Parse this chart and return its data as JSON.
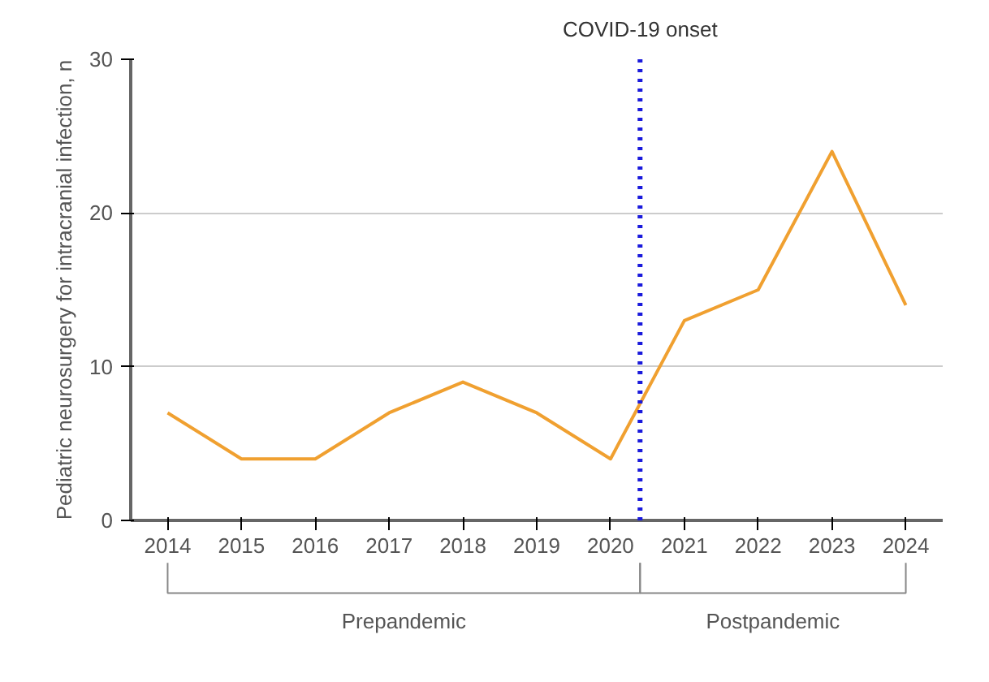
{
  "chart_data": {
    "type": "line",
    "ylabel": "Pediatric neurosurgery for intracranial infection, n",
    "x": [
      2014,
      2015,
      2016,
      2017,
      2018,
      2019,
      2020,
      2021,
      2022,
      2023,
      2024
    ],
    "series": [
      {
        "color": "#f0a030",
        "values": [
          7,
          4,
          4,
          7,
          9,
          7,
          4,
          13,
          15,
          24,
          14
        ]
      }
    ],
    "xlim": [
      2013.5,
      2024.5
    ],
    "xticks": [
      2014,
      2015,
      2016,
      2017,
      2018,
      2019,
      2020,
      2021,
      2022,
      2023,
      2024
    ],
    "ylim": [
      0,
      30
    ],
    "yticks": [
      0,
      10,
      20,
      30
    ],
    "grid": "y",
    "marker": "none",
    "line_style": "solid",
    "ref_lines": [
      {
        "axis": "x",
        "value": 2020.4,
        "label": "COVID-19 onset",
        "color": "#1a1adc",
        "line_style": "dotted"
      }
    ],
    "annotations": [
      "Prepandemic",
      "Postpandemic"
    ]
  }
}
